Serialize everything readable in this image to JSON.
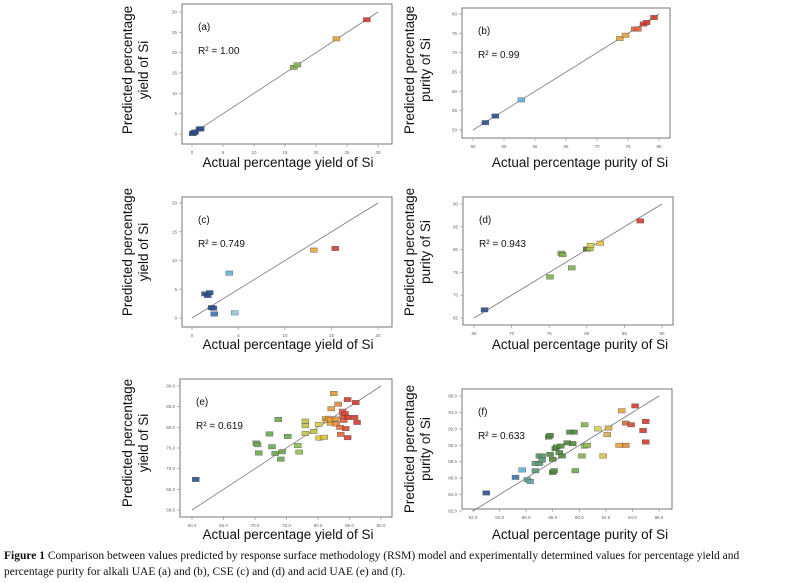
{
  "chart_data": [
    {
      "type": "scatter",
      "panel": "(a)",
      "annotation": "R² = 1.00",
      "xlabel": "Actual percentage yield of Si",
      "ylabel": [
        "Predicted percentage",
        "yield of Si"
      ],
      "xlim": [
        0,
        30
      ],
      "ylim": [
        0,
        30
      ],
      "xticks": [
        "0",
        "5",
        "10",
        "15",
        "20",
        "25",
        "30"
      ],
      "yticks": [
        "0",
        "5",
        "10",
        "15",
        "20",
        "25",
        "30"
      ],
      "tick_values": [
        0,
        5,
        10,
        15,
        20,
        25,
        30
      ],
      "fit_line": [
        [
          0,
          0
        ],
        [
          30,
          30
        ]
      ],
      "points": [
        {
          "x": 0.1,
          "y": 0.1,
          "color": "#2a4f8f"
        },
        {
          "x": 0.3,
          "y": 0.3,
          "color": "#2a4f8f"
        },
        {
          "x": 0.5,
          "y": 0.5,
          "color": "#2a4f8f"
        },
        {
          "x": 1.2,
          "y": 1.2,
          "color": "#2a4f8f"
        },
        {
          "x": 1.4,
          "y": 1.3,
          "color": "#2a4f8f"
        },
        {
          "x": 16.4,
          "y": 16.4,
          "color": "#7fb24a"
        },
        {
          "x": 17.0,
          "y": 17.0,
          "color": "#7fb24a"
        },
        {
          "x": 23.3,
          "y": 23.4,
          "color": "#e8a23a"
        },
        {
          "x": 28.2,
          "y": 28.1,
          "color": "#d63a2f"
        }
      ]
    },
    {
      "type": "scatter",
      "panel": "(b)",
      "annotation": "R² = 0.99",
      "xlabel": "Actual percentage purity of Si",
      "ylabel": [
        "Predicted percentage",
        "purity of Si"
      ],
      "xlim": [
        50,
        80
      ],
      "ylim": [
        50,
        80
      ],
      "xticks": [
        "50",
        "55",
        "60",
        "65",
        "70",
        "75",
        "80"
      ],
      "yticks": [
        "50",
        "55",
        "60",
        "65",
        "70",
        "75",
        "80"
      ],
      "tick_values": [
        50,
        55,
        60,
        65,
        70,
        75,
        80
      ],
      "fit_line": [
        [
          50,
          50
        ],
        [
          80,
          80
        ]
      ],
      "points": [
        {
          "x": 52.0,
          "y": 51.9,
          "color": "#2a4f8f"
        },
        {
          "x": 53.6,
          "y": 53.6,
          "color": "#2a4f8f"
        },
        {
          "x": 57.8,
          "y": 57.8,
          "color": "#5fb3d6"
        },
        {
          "x": 73.7,
          "y": 73.7,
          "color": "#e8a23a"
        },
        {
          "x": 74.6,
          "y": 74.5,
          "color": "#e8a23a"
        },
        {
          "x": 76.1,
          "y": 76.1,
          "color": "#e8643a"
        },
        {
          "x": 76.6,
          "y": 76.1,
          "color": "#e8643a"
        },
        {
          "x": 77.5,
          "y": 77.4,
          "color": "#d63a2f"
        },
        {
          "x": 78.0,
          "y": 77.8,
          "color": "#d63a2f"
        },
        {
          "x": 79.2,
          "y": 79.1,
          "color": "#d63a2f"
        }
      ]
    },
    {
      "type": "scatter",
      "panel": "(c)",
      "annotation": "R² = 0.749",
      "xlabel": "Actual percentage yield of Si",
      "ylabel": [
        "Predicted percentage",
        "yield of Si"
      ],
      "xlim": [
        0,
        20
      ],
      "ylim": [
        0,
        20
      ],
      "xticks": [
        "0",
        "5",
        "10",
        "15",
        "20"
      ],
      "yticks": [
        "0",
        "5",
        "10",
        "15",
        "20"
      ],
      "tick_values": [
        0,
        5,
        10,
        15,
        20
      ],
      "fit_line": [
        [
          0,
          0
        ],
        [
          20,
          20
        ]
      ],
      "points": [
        {
          "x": 1.4,
          "y": 4.2,
          "color": "#2a4f8f"
        },
        {
          "x": 1.7,
          "y": 3.9,
          "color": "#2a4f8f"
        },
        {
          "x": 1.9,
          "y": 4.4,
          "color": "#2a4f8f"
        },
        {
          "x": 2.1,
          "y": 1.8,
          "color": "#2a4f8f"
        },
        {
          "x": 2.3,
          "y": 1.7,
          "color": "#2a4f8f"
        },
        {
          "x": 2.4,
          "y": 0.7,
          "color": "#3d74b0"
        },
        {
          "x": 4.0,
          "y": 7.8,
          "color": "#5fb3d6"
        },
        {
          "x": 4.6,
          "y": 0.9,
          "color": "#8fc7e0"
        },
        {
          "x": 13.1,
          "y": 11.8,
          "color": "#e8a23a"
        },
        {
          "x": 15.4,
          "y": 12.1,
          "color": "#d63a2f"
        }
      ]
    },
    {
      "type": "scatter",
      "panel": "(d)",
      "annotation": "R² = 0.943",
      "xlabel": "Actual percentage purity of Si",
      "ylabel": [
        "Predicted percentage",
        "purity of Si"
      ],
      "xlim": [
        65,
        90
      ],
      "ylim": [
        65,
        90
      ],
      "xticks": [
        "65",
        "70",
        "75",
        "80",
        "85",
        "90"
      ],
      "yticks": [
        "65",
        "70",
        "75",
        "80",
        "85",
        "90"
      ],
      "tick_values": [
        65,
        70,
        75,
        80,
        85,
        90
      ],
      "fit_line": [
        [
          65,
          65
        ],
        [
          90,
          90
        ]
      ],
      "points": [
        {
          "x": 66.4,
          "y": 66.8,
          "color": "#2a4f8f"
        },
        {
          "x": 75.1,
          "y": 74.0,
          "color": "#7fb24a"
        },
        {
          "x": 76.6,
          "y": 79.2,
          "color": "#7fb24a"
        },
        {
          "x": 76.8,
          "y": 78.9,
          "color": "#7fb24a"
        },
        {
          "x": 78.0,
          "y": 76.0,
          "color": "#7fb24a"
        },
        {
          "x": 80.0,
          "y": 80.1,
          "color": "#556b2f"
        },
        {
          "x": 80.4,
          "y": 80.2,
          "color": "#a8c24a"
        },
        {
          "x": 80.5,
          "y": 80.9,
          "color": "#d9d04a"
        },
        {
          "x": 81.8,
          "y": 81.4,
          "color": "#e8c23a"
        },
        {
          "x": 87.1,
          "y": 86.3,
          "color": "#d63a2f"
        }
      ]
    },
    {
      "type": "scatter",
      "panel": "(e)",
      "annotation": "R² = 0.619",
      "xlabel": "Actual percentage yield of Si",
      "ylabel": [
        "Predicted percentage",
        "yield of Si"
      ],
      "xlim": [
        60,
        90
      ],
      "ylim": [
        60,
        90
      ],
      "xticks": [
        "60.0",
        "65.0",
        "70.0",
        "75.0",
        "80.0",
        "85.0",
        "90.0"
      ],
      "yticks": [
        "60.0",
        "65.0",
        "70.0",
        "75.0",
        "80.0",
        "85.0",
        "90.0"
      ],
      "tick_values": [
        60,
        65,
        70,
        75,
        80,
        85,
        90
      ],
      "fit_line": [
        [
          60,
          60
        ],
        [
          90,
          90
        ]
      ],
      "points": [
        {
          "x": 60.6,
          "y": 67.4,
          "color": "#2a4f8f"
        },
        {
          "x": 70.2,
          "y": 76.2,
          "color": "#6aa84f"
        },
        {
          "x": 70.4,
          "y": 75.8,
          "color": "#6aa84f"
        },
        {
          "x": 70.6,
          "y": 73.8,
          "color": "#6aa84f"
        },
        {
          "x": 72.3,
          "y": 78.4,
          "color": "#6aa84f"
        },
        {
          "x": 72.7,
          "y": 75.3,
          "color": "#6aa84f"
        },
        {
          "x": 73.2,
          "y": 73.7,
          "color": "#6aa84f"
        },
        {
          "x": 73.7,
          "y": 81.9,
          "color": "#6aa84f"
        },
        {
          "x": 74.1,
          "y": 72.3,
          "color": "#6aa84f"
        },
        {
          "x": 74.3,
          "y": 74.1,
          "color": "#6aa84f"
        },
        {
          "x": 75.2,
          "y": 77.8,
          "color": "#6aa84f"
        },
        {
          "x": 76.8,
          "y": 75.6,
          "color": "#8fbf4f"
        },
        {
          "x": 77.0,
          "y": 74.0,
          "color": "#8fbf4f"
        },
        {
          "x": 78.0,
          "y": 81.5,
          "color": "#c5c54a"
        },
        {
          "x": 78.0,
          "y": 80.4,
          "color": "#c5c54a"
        },
        {
          "x": 78.0,
          "y": 78.5,
          "color": "#c5c54a"
        },
        {
          "x": 79.3,
          "y": 79.0,
          "color": "#c5c54a"
        },
        {
          "x": 80.1,
          "y": 80.7,
          "color": "#e0d04a"
        },
        {
          "x": 80.2,
          "y": 77.4,
          "color": "#e0c23a"
        },
        {
          "x": 81.0,
          "y": 77.6,
          "color": "#e0c23a"
        },
        {
          "x": 81.2,
          "y": 82.1,
          "color": "#e8b23a"
        },
        {
          "x": 81.4,
          "y": 81.6,
          "color": "#e8b23a"
        },
        {
          "x": 81.7,
          "y": 82.2,
          "color": "#e8a23a"
        },
        {
          "x": 82.0,
          "y": 81.0,
          "color": "#e8a23a"
        },
        {
          "x": 82.0,
          "y": 81.8,
          "color": "#e8a23a"
        },
        {
          "x": 82.1,
          "y": 84.5,
          "color": "#e89a3a"
        },
        {
          "x": 82.5,
          "y": 88.2,
          "color": "#e89a3a"
        },
        {
          "x": 82.8,
          "y": 82.0,
          "color": "#e8903a"
        },
        {
          "x": 82.9,
          "y": 80.8,
          "color": "#e8903a"
        },
        {
          "x": 83.2,
          "y": 85.6,
          "color": "#e8843a"
        },
        {
          "x": 83.5,
          "y": 80.0,
          "color": "#e8743a"
        },
        {
          "x": 83.6,
          "y": 78.3,
          "color": "#e8643a"
        },
        {
          "x": 83.9,
          "y": 83.9,
          "color": "#e05a3a"
        },
        {
          "x": 84.0,
          "y": 82.7,
          "color": "#e05a3a"
        },
        {
          "x": 84.1,
          "y": 81.7,
          "color": "#e05a3a"
        },
        {
          "x": 84.3,
          "y": 83.3,
          "color": "#d84a34"
        },
        {
          "x": 84.4,
          "y": 79.7,
          "color": "#d84a34"
        },
        {
          "x": 84.7,
          "y": 86.7,
          "color": "#d63a2f"
        },
        {
          "x": 84.7,
          "y": 82.4,
          "color": "#d63a2f"
        },
        {
          "x": 84.7,
          "y": 77.5,
          "color": "#d63a2f"
        },
        {
          "x": 85.8,
          "y": 82.4,
          "color": "#d63a2f"
        },
        {
          "x": 86.0,
          "y": 86.0,
          "color": "#d63a2f"
        },
        {
          "x": 86.2,
          "y": 81.2,
          "color": "#d63a2f"
        }
      ]
    },
    {
      "type": "scatter",
      "panel": "(f)",
      "annotation": "R² = 0.633",
      "xlabel": "Actual percentage purity of Si",
      "ylabel": [
        "Predicted percentage",
        "purity of Si"
      ],
      "xlim": [
        82,
        96
      ],
      "ylim": [
        82,
        96
      ],
      "xticks": [
        "82.0",
        "84.0",
        "86.0",
        "88.0",
        "90.0",
        "92.0",
        "94.0",
        "96.0"
      ],
      "yticks": [
        "82.0",
        "84.0",
        "86.0",
        "88.0",
        "90.0",
        "92.0",
        "94.0",
        "96.0"
      ],
      "tick_values": [
        82,
        84,
        86,
        88,
        90,
        92,
        94,
        96
      ],
      "fit_line": [
        [
          82,
          82
        ],
        [
          96,
          96
        ]
      ],
      "points": [
        {
          "x": 83.0,
          "y": 84.2,
          "color": "#2a4f8f"
        },
        {
          "x": 85.2,
          "y": 86.1,
          "color": "#3d74b0"
        },
        {
          "x": 85.7,
          "y": 87.0,
          "color": "#5fb3d6"
        },
        {
          "x": 86.1,
          "y": 85.8,
          "color": "#6aa0a0"
        },
        {
          "x": 86.3,
          "y": 85.6,
          "color": "#6aa0a0"
        },
        {
          "x": 86.7,
          "y": 86.9,
          "color": "#5a9a70"
        },
        {
          "x": 86.7,
          "y": 87.8,
          "color": "#5a9a70"
        },
        {
          "x": 87.0,
          "y": 88.7,
          "color": "#5a9a70"
        },
        {
          "x": 87.0,
          "y": 87.8,
          "color": "#5a9a70"
        },
        {
          "x": 87.2,
          "y": 88.7,
          "color": "#5a9a70"
        },
        {
          "x": 87.2,
          "y": 88.2,
          "color": "#5a9a70"
        },
        {
          "x": 87.7,
          "y": 91.0,
          "color": "#4f8a3a"
        },
        {
          "x": 87.8,
          "y": 91.2,
          "color": "#4f8a3a"
        },
        {
          "x": 87.8,
          "y": 88.9,
          "color": "#4f8a3a"
        },
        {
          "x": 88.0,
          "y": 86.7,
          "color": "#4f8a3a"
        },
        {
          "x": 88.0,
          "y": 88.3,
          "color": "#4f8a3a"
        },
        {
          "x": 88.1,
          "y": 86.9,
          "color": "#4f8a3a"
        },
        {
          "x": 88.2,
          "y": 89.6,
          "color": "#4f8a3a"
        },
        {
          "x": 88.3,
          "y": 89.8,
          "color": "#4f8a3a"
        },
        {
          "x": 88.5,
          "y": 89.1,
          "color": "#4f8a3a"
        },
        {
          "x": 88.6,
          "y": 89.9,
          "color": "#4f8a3a"
        },
        {
          "x": 88.7,
          "y": 88.7,
          "color": "#4f8a3a"
        },
        {
          "x": 89.1,
          "y": 90.3,
          "color": "#4f8a3a"
        },
        {
          "x": 89.3,
          "y": 91.6,
          "color": "#4f8a3a"
        },
        {
          "x": 89.5,
          "y": 90.2,
          "color": "#4f8a3a"
        },
        {
          "x": 89.6,
          "y": 91.6,
          "color": "#4f8a3a"
        },
        {
          "x": 89.7,
          "y": 86.9,
          "color": "#6aa84f"
        },
        {
          "x": 90.2,
          "y": 88.7,
          "color": "#7fb24a"
        },
        {
          "x": 90.4,
          "y": 92.5,
          "color": "#7fb24a"
        },
        {
          "x": 90.4,
          "y": 89.9,
          "color": "#8fbf4f"
        },
        {
          "x": 90.6,
          "y": 90.0,
          "color": "#8fbf4f"
        },
        {
          "x": 91.4,
          "y": 92.0,
          "color": "#d9d04a"
        },
        {
          "x": 91.8,
          "y": 88.7,
          "color": "#d9c04a"
        },
        {
          "x": 92.1,
          "y": 91.3,
          "color": "#d9b04a"
        },
        {
          "x": 92.2,
          "y": 92.1,
          "color": "#d9b04a"
        },
        {
          "x": 93.0,
          "y": 90.0,
          "color": "#e8a23a"
        },
        {
          "x": 93.2,
          "y": 94.2,
          "color": "#e8a23a"
        },
        {
          "x": 93.5,
          "y": 90.0,
          "color": "#e08a3a"
        },
        {
          "x": 93.5,
          "y": 92.7,
          "color": "#d86a3a"
        },
        {
          "x": 93.9,
          "y": 92.5,
          "color": "#d64a34"
        },
        {
          "x": 94.2,
          "y": 94.8,
          "color": "#d63a2f"
        },
        {
          "x": 94.8,
          "y": 91.8,
          "color": "#d63a2f"
        },
        {
          "x": 95.0,
          "y": 92.9,
          "color": "#d63a2f"
        },
        {
          "x": 95.0,
          "y": 90.4,
          "color": "#d63a2f"
        }
      ]
    }
  ],
  "caption": {
    "label": "Figure 1",
    "text": " Comparison between values predicted by response surface methodology (RSM) model and experimentally determined values for percentage yield and percentage purity for alkali UAE (a) and (b), CSE (c) and (d) and acid UAE (e) and (f)."
  }
}
